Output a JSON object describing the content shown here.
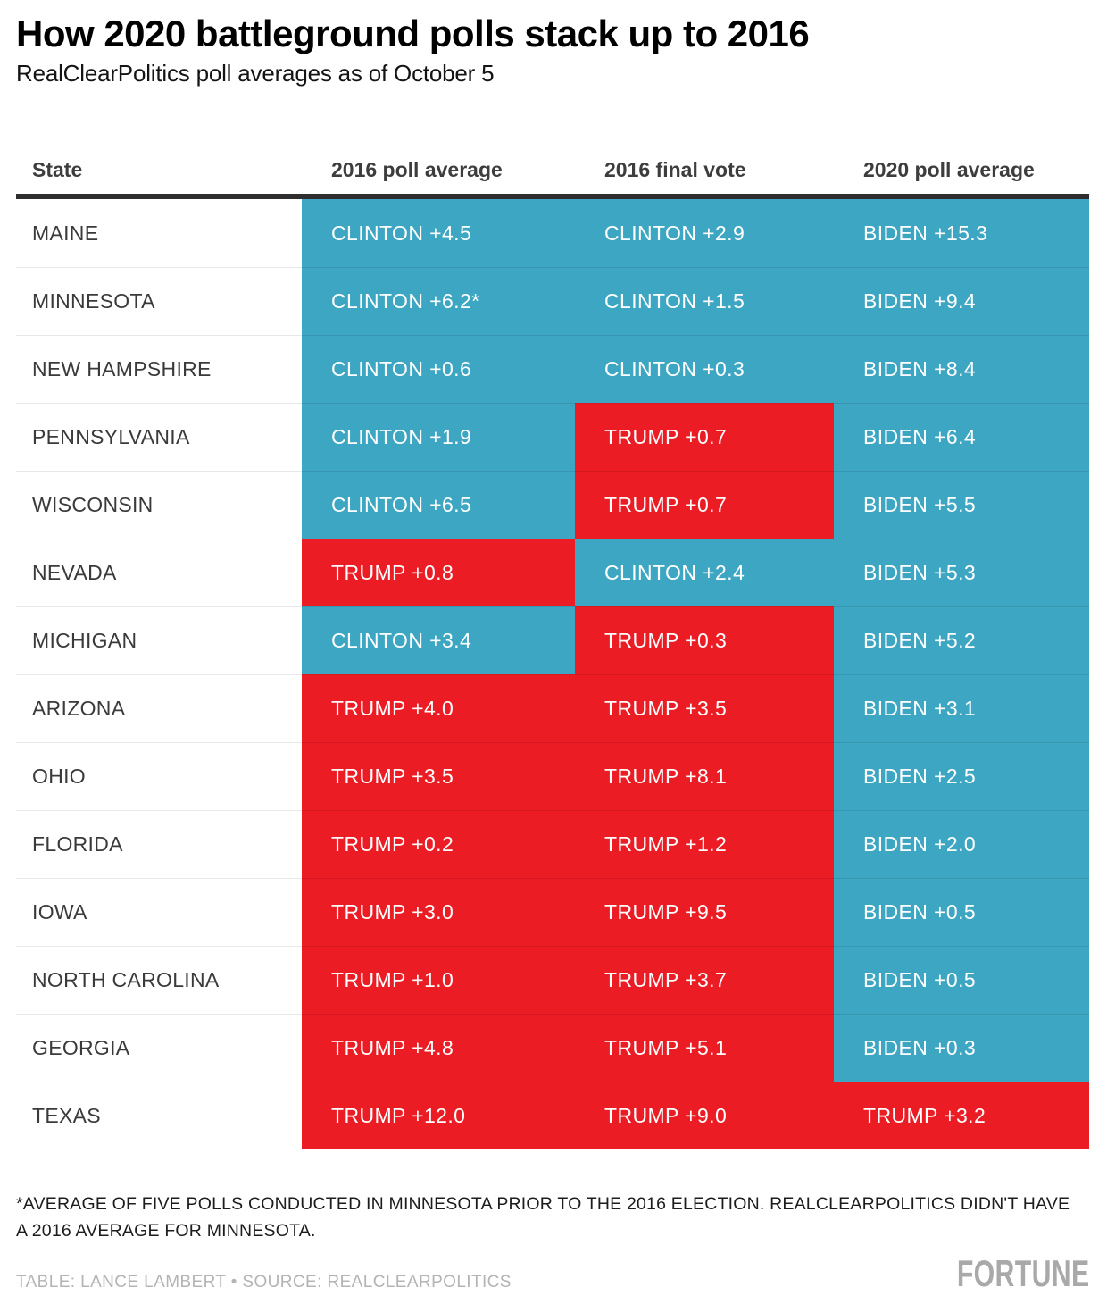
{
  "chart_data": {
    "type": "table",
    "title": "How 2020 battleground polls stack up to 2016",
    "subtitle": "RealClearPolitics poll averages as of October 5",
    "columns": [
      "State",
      "2016 poll average",
      "2016 final vote",
      "2020 poll average"
    ],
    "colors": {
      "dem": "#3DA6C2",
      "rep": "#EC1C24"
    },
    "rows": [
      {
        "state": "MAINE",
        "cells": [
          {
            "label": "CLINTON +4.5",
            "party": "dem"
          },
          {
            "label": "CLINTON +2.9",
            "party": "dem"
          },
          {
            "label": "BIDEN +15.3",
            "party": "dem"
          }
        ]
      },
      {
        "state": "MINNESOTA",
        "cells": [
          {
            "label": "CLINTON +6.2*",
            "party": "dem"
          },
          {
            "label": "CLINTON +1.5",
            "party": "dem"
          },
          {
            "label": "BIDEN +9.4",
            "party": "dem"
          }
        ]
      },
      {
        "state": "NEW HAMPSHIRE",
        "cells": [
          {
            "label": "CLINTON +0.6",
            "party": "dem"
          },
          {
            "label": "CLINTON +0.3",
            "party": "dem"
          },
          {
            "label": "BIDEN +8.4",
            "party": "dem"
          }
        ]
      },
      {
        "state": "PENNSYLVANIA",
        "cells": [
          {
            "label": "CLINTON +1.9",
            "party": "dem"
          },
          {
            "label": "TRUMP +0.7",
            "party": "rep"
          },
          {
            "label": "BIDEN +6.4",
            "party": "dem"
          }
        ]
      },
      {
        "state": "WISCONSIN",
        "cells": [
          {
            "label": "CLINTON +6.5",
            "party": "dem"
          },
          {
            "label": "TRUMP +0.7",
            "party": "rep"
          },
          {
            "label": "BIDEN +5.5",
            "party": "dem"
          }
        ]
      },
      {
        "state": "NEVADA",
        "cells": [
          {
            "label": "TRUMP +0.8",
            "party": "rep"
          },
          {
            "label": "CLINTON +2.4",
            "party": "dem"
          },
          {
            "label": "BIDEN +5.3",
            "party": "dem"
          }
        ]
      },
      {
        "state": "MICHIGAN",
        "cells": [
          {
            "label": "CLINTON +3.4",
            "party": "dem"
          },
          {
            "label": "TRUMP +0.3",
            "party": "rep"
          },
          {
            "label": "BIDEN +5.2",
            "party": "dem"
          }
        ]
      },
      {
        "state": "ARIZONA",
        "cells": [
          {
            "label": "TRUMP +4.0",
            "party": "rep"
          },
          {
            "label": "TRUMP +3.5",
            "party": "rep"
          },
          {
            "label": "BIDEN +3.1",
            "party": "dem"
          }
        ]
      },
      {
        "state": "OHIO",
        "cells": [
          {
            "label": "TRUMP +3.5",
            "party": "rep"
          },
          {
            "label": "TRUMP +8.1",
            "party": "rep"
          },
          {
            "label": "BIDEN +2.5",
            "party": "dem"
          }
        ]
      },
      {
        "state": "FLORIDA",
        "cells": [
          {
            "label": "TRUMP +0.2",
            "party": "rep"
          },
          {
            "label": "TRUMP +1.2",
            "party": "rep"
          },
          {
            "label": "BIDEN +2.0",
            "party": "dem"
          }
        ]
      },
      {
        "state": "IOWA",
        "cells": [
          {
            "label": "TRUMP +3.0",
            "party": "rep"
          },
          {
            "label": "TRUMP +9.5",
            "party": "rep"
          },
          {
            "label": "BIDEN +0.5",
            "party": "dem"
          }
        ]
      },
      {
        "state": "NORTH CAROLINA",
        "cells": [
          {
            "label": "TRUMP +1.0",
            "party": "rep"
          },
          {
            "label": "TRUMP +3.7",
            "party": "rep"
          },
          {
            "label": "BIDEN +0.5",
            "party": "dem"
          }
        ]
      },
      {
        "state": "GEORGIA",
        "cells": [
          {
            "label": "TRUMP +4.8",
            "party": "rep"
          },
          {
            "label": "TRUMP +5.1",
            "party": "rep"
          },
          {
            "label": "BIDEN +0.3",
            "party": "dem"
          }
        ]
      },
      {
        "state": "TEXAS",
        "cells": [
          {
            "label": "TRUMP +12.0",
            "party": "rep"
          },
          {
            "label": "TRUMP +9.0",
            "party": "rep"
          },
          {
            "label": "TRUMP +3.2",
            "party": "rep"
          }
        ]
      }
    ],
    "footnote": "*AVERAGE OF FIVE POLLS CONDUCTED IN MINNESOTA PRIOR TO THE 2016 ELECTION. REALCLEARPOLITICS DIDN'T HAVE A 2016 AVERAGE FOR MINNESOTA.",
    "credit": "TABLE: LANCE LAMBERT • SOURCE: REALCLEARPOLITICS",
    "brand": "FORTUNE"
  }
}
